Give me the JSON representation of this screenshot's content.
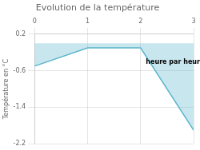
{
  "chart_data": {
    "type": "line",
    "title": "Evolution de la température",
    "ylabel": "Température en °C",
    "x": [
      0,
      1,
      2,
      3
    ],
    "values": [
      -0.5,
      -0.1,
      -0.1,
      -1.9
    ],
    "color": "#5ab5cc",
    "xlim": [
      0,
      3
    ],
    "ylim": [
      -2.2,
      0.2
    ],
    "xticks": [
      0,
      1,
      2,
      3
    ],
    "yticks": [
      0.2,
      -0.6,
      -1.4,
      -2.2
    ],
    "grid": true,
    "annotations": [
      {
        "text": "heure par heure",
        "x": 2.1,
        "y": -0.42
      }
    ]
  }
}
